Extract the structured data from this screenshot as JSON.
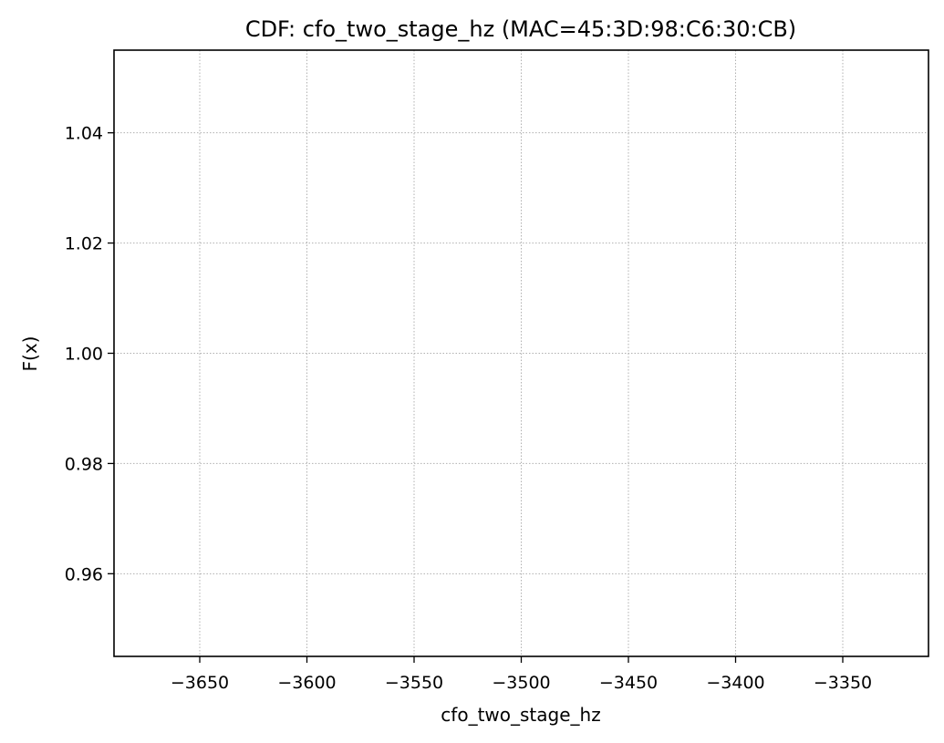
{
  "chart_data": {
    "type": "line",
    "title": "CDF: cfo_two_stage_hz (MAC=45:3D:98:C6:30:CB)",
    "xlabel": "cfo_two_stage_hz",
    "ylabel": "F(x)",
    "xlim": [
      -3690,
      -3310
    ],
    "ylim": [
      0.945,
      1.055
    ],
    "xticks": [
      -3650,
      -3600,
      -3550,
      -3500,
      -3450,
      -3400,
      -3350
    ],
    "xtick_labels": [
      "−3650",
      "−3600",
      "−3550",
      "−3500",
      "−3450",
      "−3400",
      "−3350"
    ],
    "yticks": [
      0.96,
      0.98,
      1.0,
      1.02,
      1.04
    ],
    "ytick_labels": [
      "0.96",
      "0.98",
      "1.00",
      "1.02",
      "1.04"
    ],
    "grid": true,
    "series": [
      {
        "x": [],
        "y": []
      }
    ]
  }
}
